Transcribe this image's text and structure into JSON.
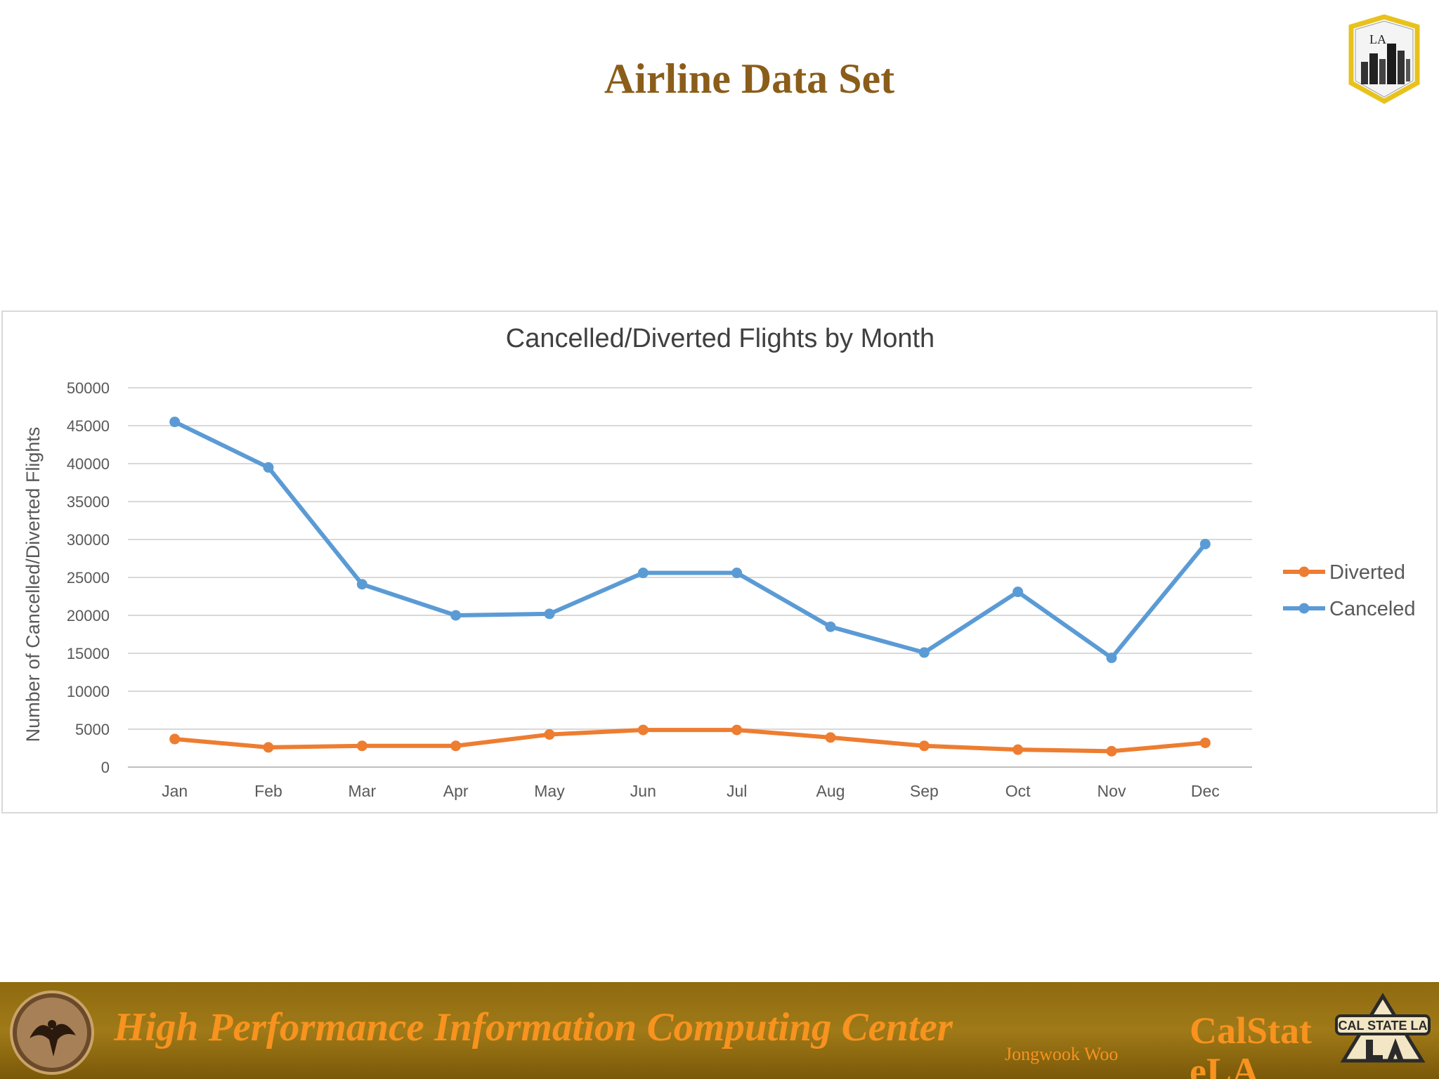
{
  "slide": {
    "title": "Airline Data Set"
  },
  "footer": {
    "center_name": "High Performance Information Computing Center",
    "author": "Jongwook Woo",
    "school": "CalStateLA",
    "logo_text": "CAL STATE LA",
    "badge_text": "LA"
  },
  "colors": {
    "title": "#8a5d1a",
    "footer_bg": "#9a7414",
    "footer_text": "#f7931e",
    "diverted": "#ed7d31",
    "canceled": "#5b9bd5"
  },
  "chart_data": {
    "type": "line",
    "title": "Cancelled/Diverted Flights by Month",
    "xlabel": "",
    "ylabel": "Number of Cancelled/Diverted  Flights",
    "categories": [
      "Jan",
      "Feb",
      "Mar",
      "Apr",
      "May",
      "Jun",
      "Jul",
      "Aug",
      "Sep",
      "Oct",
      "Nov",
      "Dec"
    ],
    "ylim": [
      0,
      50000
    ],
    "yticks": [
      0,
      5000,
      10000,
      15000,
      20000,
      25000,
      30000,
      35000,
      40000,
      45000,
      50000
    ],
    "grid": true,
    "legend_position": "right",
    "series": [
      {
        "name": "Diverted",
        "color": "#ed7d31",
        "values": [
          3700,
          2600,
          2800,
          2800,
          4300,
          4900,
          4900,
          3900,
          2800,
          2300,
          2100,
          3200
        ]
      },
      {
        "name": "Canceled",
        "color": "#5b9bd5",
        "values": [
          45500,
          39500,
          24100,
          20000,
          20200,
          25600,
          25600,
          18500,
          15100,
          23100,
          14400,
          29400
        ]
      }
    ]
  }
}
